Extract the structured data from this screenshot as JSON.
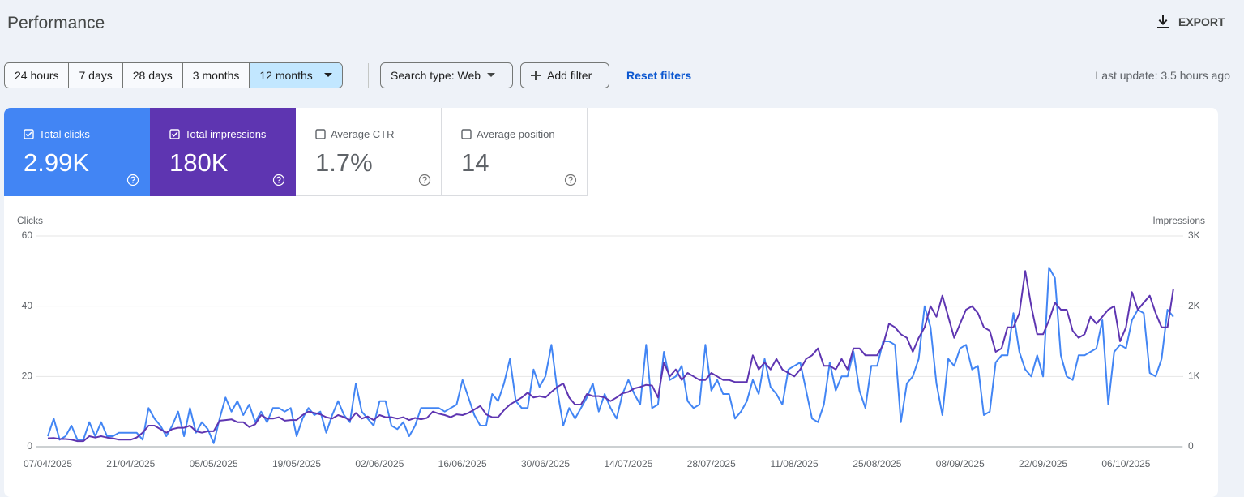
{
  "header": {
    "title": "Performance",
    "export": "EXPORT"
  },
  "filters": {
    "date_ranges": [
      "24 hours",
      "7 days",
      "28 days",
      "3 months",
      "12 months"
    ],
    "selected": 4,
    "search_type": "Search type: Web",
    "add_filter": "Add filter",
    "reset_filters": "Reset filters",
    "last_update": "Last update: 3.5 hours ago"
  },
  "metrics": [
    {
      "label": "Total clicks",
      "value": "2.99K",
      "checked": true,
      "color": "#4285f4"
    },
    {
      "label": "Total impressions",
      "value": "180K",
      "checked": true,
      "color": "#5e35b1"
    },
    {
      "label": "Average CTR",
      "value": "1.7%",
      "checked": false,
      "color": "#ffffff"
    },
    {
      "label": "Average position",
      "value": "14",
      "checked": false,
      "color": "#ffffff"
    }
  ],
  "chart_data": {
    "type": "line",
    "y_label": "Clicks",
    "y2_label": "Impressions",
    "categories": [
      "07/04/2025",
      null,
      null,
      null,
      null,
      null,
      null,
      null,
      null,
      null,
      null,
      null,
      null,
      null,
      "21/04/2025",
      null,
      null,
      null,
      null,
      null,
      null,
      null,
      null,
      null,
      null,
      null,
      null,
      null,
      "05/05/2025",
      null,
      null,
      null,
      null,
      null,
      null,
      null,
      null,
      null,
      null,
      null,
      null,
      null,
      "19/05/2025",
      null,
      null,
      null,
      null,
      null,
      null,
      null,
      null,
      null,
      null,
      null,
      null,
      null,
      "02/06/2025",
      null,
      null,
      null,
      null,
      null,
      null,
      null,
      null,
      null,
      null,
      null,
      null,
      null,
      "16/06/2025",
      null,
      null,
      null,
      null,
      null,
      null,
      null,
      null,
      null,
      null,
      null,
      null,
      null,
      "30/06/2025",
      null,
      null,
      null,
      null,
      null,
      null,
      null,
      null,
      null,
      null,
      null,
      null,
      null,
      "14/07/2025",
      null,
      null,
      null,
      null,
      null,
      null,
      null,
      null,
      null,
      null,
      null,
      null,
      null,
      "28/07/2025",
      null,
      null,
      null,
      null,
      null,
      null,
      null,
      null,
      null,
      null,
      null,
      null,
      null,
      "11/08/2025",
      null,
      null,
      null,
      null,
      null,
      null,
      null,
      null,
      null,
      null,
      null,
      null,
      null,
      "25/08/2025",
      null,
      null,
      null,
      null,
      null,
      null,
      null,
      null,
      null,
      null,
      null,
      null,
      null,
      "08/09/2025",
      null,
      null,
      null,
      null,
      null,
      null,
      null,
      null,
      null,
      null,
      null,
      null,
      null,
      "22/09/2025",
      null,
      null,
      null,
      null,
      null,
      null,
      null,
      null,
      null,
      null,
      null,
      null,
      null,
      "06/10/2025",
      null,
      null,
      null,
      null,
      null,
      null,
      null,
      null
    ],
    "series": [
      {
        "name": "Clicks",
        "color": "#4285f4",
        "values": [
          3,
          8,
          2,
          3,
          6,
          2,
          2,
          7,
          3,
          7,
          3,
          3,
          4,
          4,
          4,
          4,
          2,
          11,
          8,
          6,
          3,
          6,
          10,
          3,
          11,
          4,
          7,
          5,
          1,
          8,
          14,
          10,
          13,
          9,
          12,
          7,
          10,
          7,
          11,
          11,
          10,
          11,
          3,
          8,
          11,
          9,
          10,
          4,
          9,
          13,
          9,
          7,
          18,
          10,
          8,
          6,
          13,
          13,
          6,
          5,
          7,
          3,
          6,
          11,
          11,
          11,
          11,
          10,
          11,
          12,
          19,
          14,
          9,
          6,
          6,
          15,
          13,
          18,
          25,
          13,
          11,
          11,
          22,
          17,
          20,
          29,
          16,
          6,
          11,
          8,
          11,
          14,
          18,
          10,
          15,
          11,
          8,
          15,
          19,
          15,
          12,
          29,
          11,
          12,
          27,
          19,
          20,
          23,
          13,
          11,
          12,
          29,
          16,
          19,
          15,
          15,
          8,
          10,
          13,
          19,
          15,
          25,
          17,
          15,
          12,
          22,
          23,
          24,
          16,
          8,
          7,
          12,
          24,
          16,
          20,
          20,
          27,
          16,
          11,
          23,
          23,
          30,
          30,
          29,
          7,
          18,
          20,
          25,
          40,
          34,
          18,
          9,
          25,
          23,
          28,
          29,
          22,
          23,
          9,
          10,
          24,
          26,
          26,
          38,
          27,
          22,
          20,
          26,
          20,
          51,
          48,
          26,
          20,
          19,
          26,
          26,
          27,
          28,
          36,
          12,
          27,
          29,
          28,
          36,
          39,
          38,
          21,
          20,
          25,
          39,
          37
        ]
      },
      {
        "name": "Impressions",
        "color": "#5e35b1",
        "axis": "y2",
        "values": [
          120,
          125,
          110,
          110,
          100,
          80,
          80,
          150,
          130,
          150,
          130,
          120,
          100,
          100,
          100,
          130,
          200,
          300,
          300,
          250,
          200,
          250,
          270,
          270,
          300,
          220,
          200,
          220,
          220,
          370,
          380,
          390,
          350,
          350,
          280,
          320,
          450,
          400,
          400,
          420,
          370,
          380,
          380,
          450,
          500,
          480,
          460,
          420,
          400,
          450,
          420,
          380,
          480,
          400,
          430,
          380,
          450,
          420,
          420,
          400,
          420,
          380,
          410,
          390,
          410,
          500,
          470,
          450,
          420,
          460,
          450,
          480,
          530,
          580,
          460,
          420,
          420,
          520,
          600,
          650,
          700,
          770,
          700,
          720,
          700,
          780,
          850,
          900,
          700,
          600,
          600,
          750,
          720,
          720,
          700,
          650,
          700,
          760,
          780,
          830,
          850,
          880,
          870,
          700,
          1200,
          1000,
          1100,
          950,
          1050,
          1000,
          950,
          950,
          1050,
          1000,
          950,
          950,
          920,
          920,
          920,
          1300,
          1100,
          1200,
          1100,
          1250,
          1100,
          1050,
          1000,
          1100,
          1250,
          1300,
          1400,
          1150,
          1150,
          1100,
          1250,
          1100,
          1400,
          1400,
          1300,
          1300,
          1300,
          1450,
          1750,
          1700,
          1600,
          1550,
          1350,
          1550,
          1700,
          2000,
          1850,
          2150,
          1850,
          1550,
          1750,
          1950,
          2000,
          1900,
          1700,
          1650,
          1350,
          1400,
          1700,
          1700,
          1900,
          2500,
          2000,
          1600,
          1600,
          1800,
          2050,
          1950,
          1950,
          1650,
          1550,
          1600,
          1850,
          1750,
          1850,
          1950,
          2000,
          1500,
          1700,
          2200,
          1950,
          2050,
          2150,
          1900,
          1700,
          1700,
          2250
        ]
      }
    ],
    "ylim": [
      0,
      60
    ],
    "yticks": [
      0,
      20,
      40,
      60
    ],
    "y2lim": [
      0,
      3000
    ],
    "y2ticks": [
      0,
      {
        "value": 1000,
        "label": "1K"
      },
      {
        "value": 2000,
        "label": "2K"
      },
      {
        "value": 3000,
        "label": "3K"
      }
    ],
    "grid": true
  }
}
